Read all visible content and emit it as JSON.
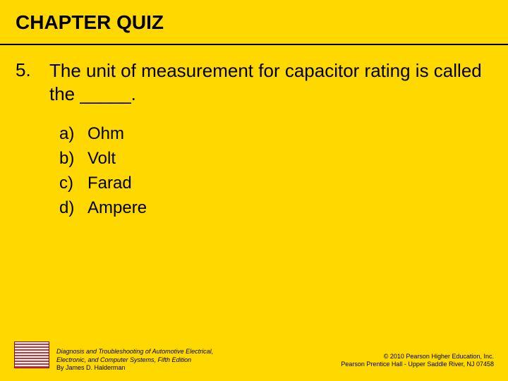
{
  "colors": {
    "background": "#ffd800",
    "text": "#000000",
    "rule": "#000000"
  },
  "typography": {
    "title_fontsize": 28,
    "title_weight": 700,
    "body_fontsize": 26,
    "option_fontsize": 24,
    "footer_fontsize": 9
  },
  "title": "CHAPTER QUIZ",
  "question": {
    "number": "5.",
    "text": "The unit of measurement for capacitor rating is called the _____."
  },
  "options": [
    {
      "letter": "a)",
      "text": "Ohm"
    },
    {
      "letter": "b)",
      "text": "Volt"
    },
    {
      "letter": "c)",
      "text": "Farad"
    },
    {
      "letter": "d)",
      "text": "Ampere"
    }
  ],
  "footer": {
    "left_line1": "Diagnosis and Troubleshooting of Automotive Electrical,",
    "left_line2": "Electronic, and Computer Systems, Fifth Edition",
    "left_line3": "By James D. Halderman",
    "right_line1": "© 2010 Pearson Higher Education, Inc.",
    "right_line2": "Pearson Prentice Hall - Upper Saddle River, NJ 07458"
  }
}
